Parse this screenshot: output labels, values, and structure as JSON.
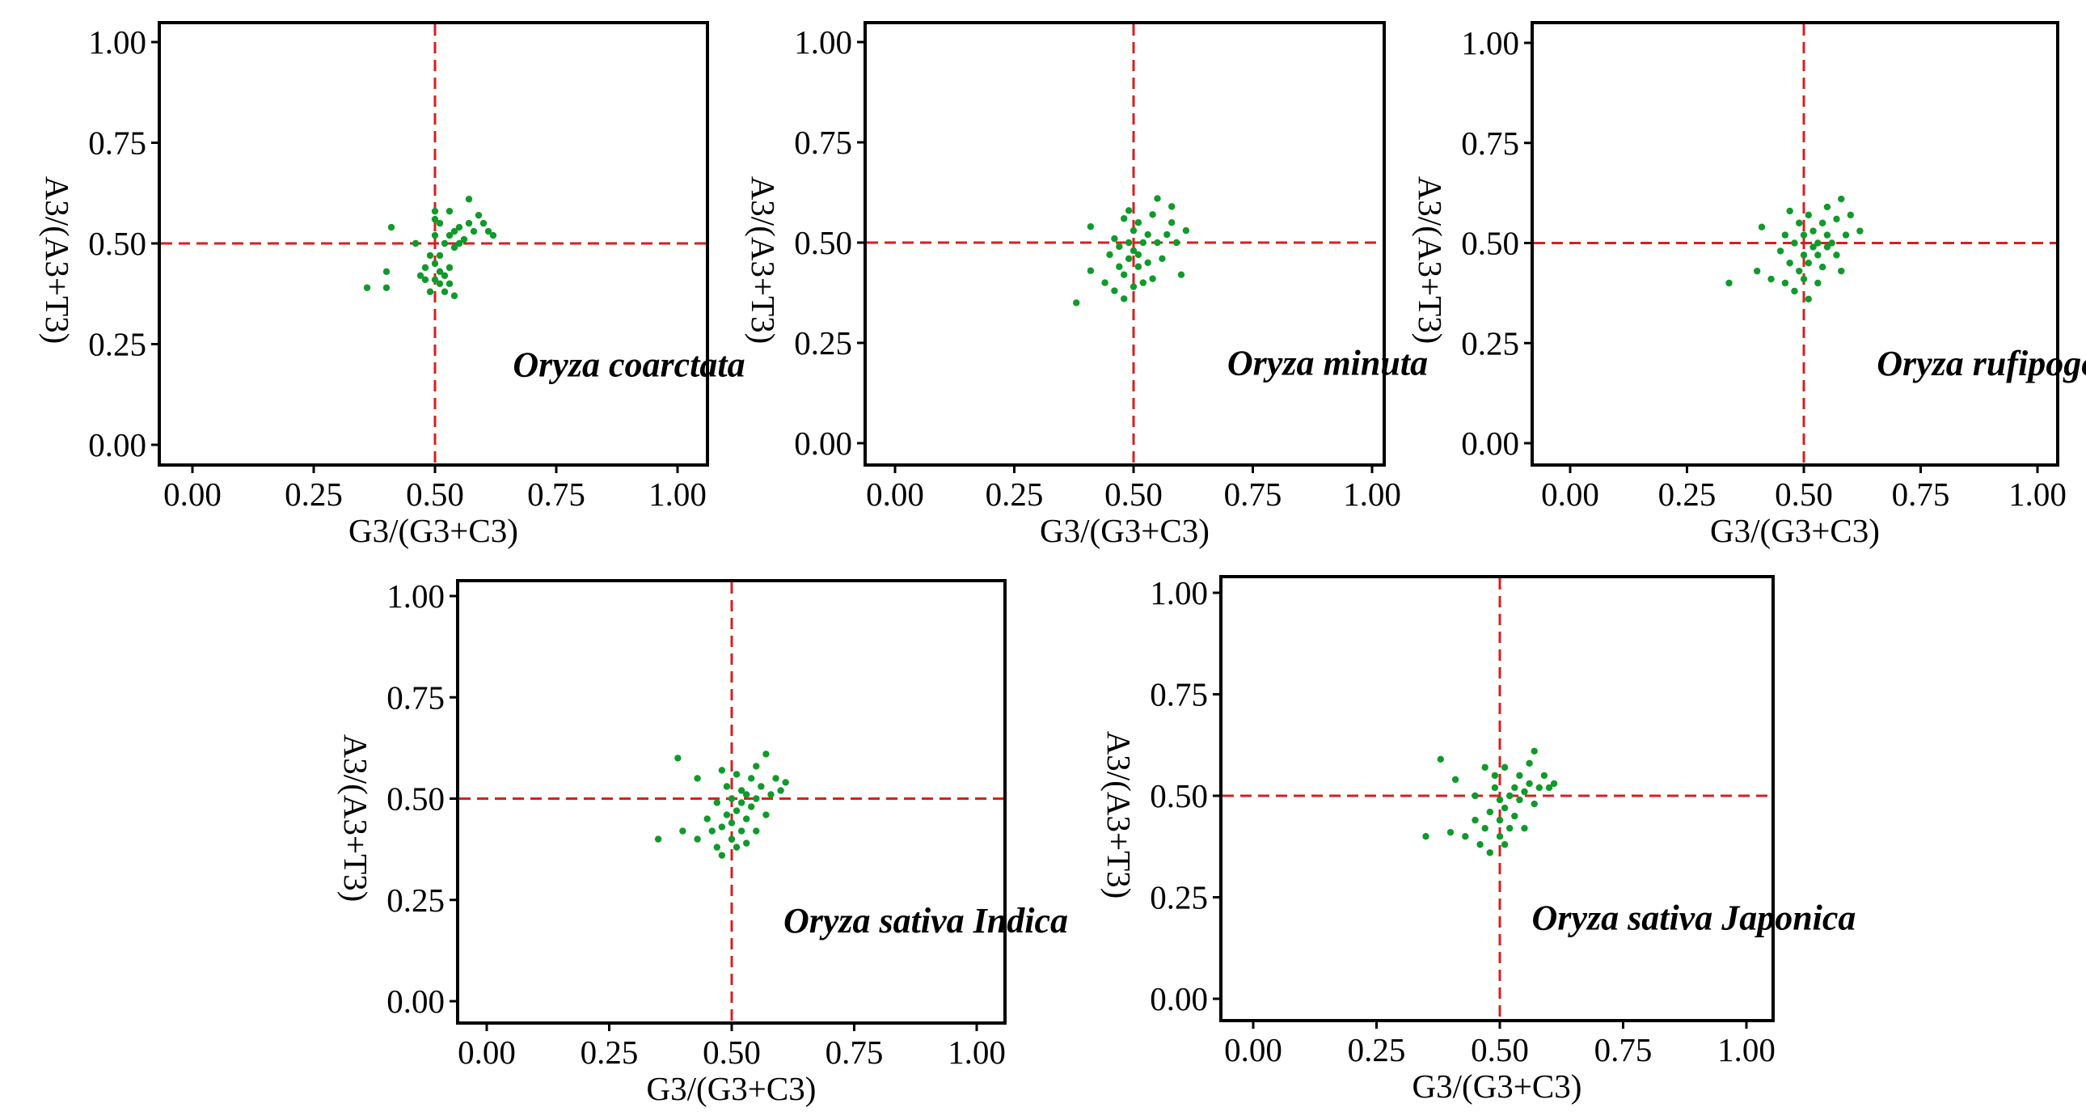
{
  "colors": {
    "points": "#0f9a2a",
    "ref_lines": "#d42020",
    "frame": "#000000",
    "text": "#000000"
  },
  "chart_data": [
    {
      "type": "scatter",
      "title": "Oryza coarctata",
      "xlabel": "G3/(G3+C3)",
      "ylabel": "A3/(A3+T3)",
      "xlim": [
        0,
        1
      ],
      "ylim": [
        0,
        1
      ],
      "xticks": [
        "0.00",
        "0.25",
        "0.50",
        "0.75",
        "1.00"
      ],
      "yticks": [
        "0.00",
        "0.25",
        "0.50",
        "0.75",
        "1.00"
      ],
      "ref_x": 0.5,
      "ref_y": 0.5,
      "points": [
        [
          0.36,
          0.39
        ],
        [
          0.4,
          0.39
        ],
        [
          0.4,
          0.43
        ],
        [
          0.41,
          0.54
        ],
        [
          0.46,
          0.5
        ],
        [
          0.47,
          0.42
        ],
        [
          0.48,
          0.41
        ],
        [
          0.48,
          0.44
        ],
        [
          0.49,
          0.38
        ],
        [
          0.49,
          0.47
        ],
        [
          0.5,
          0.41
        ],
        [
          0.5,
          0.45
        ],
        [
          0.5,
          0.52
        ],
        [
          0.5,
          0.56
        ],
        [
          0.5,
          0.58
        ],
        [
          0.51,
          0.4
        ],
        [
          0.51,
          0.43
        ],
        [
          0.51,
          0.47
        ],
        [
          0.51,
          0.55
        ],
        [
          0.52,
          0.38
        ],
        [
          0.52,
          0.42
        ],
        [
          0.52,
          0.5
        ],
        [
          0.53,
          0.4
        ],
        [
          0.53,
          0.44
        ],
        [
          0.53,
          0.52
        ],
        [
          0.53,
          0.58
        ],
        [
          0.54,
          0.37
        ],
        [
          0.54,
          0.49
        ],
        [
          0.54,
          0.53
        ],
        [
          0.55,
          0.5
        ],
        [
          0.55,
          0.54
        ],
        [
          0.56,
          0.51
        ],
        [
          0.57,
          0.55
        ],
        [
          0.57,
          0.61
        ],
        [
          0.58,
          0.53
        ],
        [
          0.59,
          0.57
        ],
        [
          0.6,
          0.55
        ],
        [
          0.61,
          0.53
        ],
        [
          0.62,
          0.52
        ]
      ]
    },
    {
      "type": "scatter",
      "title": "Oryza minuta",
      "xlabel": "G3/(G3+C3)",
      "ylabel": "A3/(A3+T3)",
      "xlim": [
        0,
        1
      ],
      "ylim": [
        0,
        1
      ],
      "xticks": [
        "0.00",
        "0.25",
        "0.50",
        "0.75",
        "1.00"
      ],
      "yticks": [
        "0.00",
        "0.25",
        "0.50",
        "0.75",
        "1.00"
      ],
      "ref_x": 0.5,
      "ref_y": 0.5,
      "points": [
        [
          0.38,
          0.35
        ],
        [
          0.41,
          0.43
        ],
        [
          0.41,
          0.54
        ],
        [
          0.44,
          0.4
        ],
        [
          0.45,
          0.47
        ],
        [
          0.46,
          0.38
        ],
        [
          0.46,
          0.51
        ],
        [
          0.47,
          0.44
        ],
        [
          0.47,
          0.49
        ],
        [
          0.48,
          0.36
        ],
        [
          0.48,
          0.42
        ],
        [
          0.48,
          0.56
        ],
        [
          0.49,
          0.46
        ],
        [
          0.49,
          0.5
        ],
        [
          0.49,
          0.58
        ],
        [
          0.5,
          0.39
        ],
        [
          0.5,
          0.48
        ],
        [
          0.5,
          0.53
        ],
        [
          0.51,
          0.44
        ],
        [
          0.51,
          0.47
        ],
        [
          0.51,
          0.55
        ],
        [
          0.52,
          0.4
        ],
        [
          0.52,
          0.5
        ],
        [
          0.53,
          0.45
        ],
        [
          0.53,
          0.52
        ],
        [
          0.54,
          0.41
        ],
        [
          0.54,
          0.57
        ],
        [
          0.55,
          0.5
        ],
        [
          0.55,
          0.61
        ],
        [
          0.56,
          0.46
        ],
        [
          0.57,
          0.52
        ],
        [
          0.58,
          0.55
        ],
        [
          0.58,
          0.59
        ],
        [
          0.59,
          0.5
        ],
        [
          0.6,
          0.42
        ],
        [
          0.61,
          0.53
        ]
      ]
    },
    {
      "type": "scatter",
      "title": "Oryza rufipogon",
      "xlabel": "G3/(G3+C3)",
      "ylabel": "A3/(A3+T3)",
      "xlim": [
        0,
        1
      ],
      "ylim": [
        0,
        1
      ],
      "xticks": [
        "0.00",
        "0.25",
        "0.50",
        "0.75",
        "1.00"
      ],
      "yticks": [
        "0.00",
        "0.25",
        "0.50",
        "0.75",
        "1.00"
      ],
      "ref_x": 0.5,
      "ref_y": 0.5,
      "points": [
        [
          0.34,
          0.4
        ],
        [
          0.4,
          0.43
        ],
        [
          0.41,
          0.54
        ],
        [
          0.43,
          0.41
        ],
        [
          0.45,
          0.48
        ],
        [
          0.46,
          0.4
        ],
        [
          0.46,
          0.52
        ],
        [
          0.47,
          0.45
        ],
        [
          0.47,
          0.58
        ],
        [
          0.48,
          0.38
        ],
        [
          0.48,
          0.5
        ],
        [
          0.49,
          0.43
        ],
        [
          0.49,
          0.55
        ],
        [
          0.5,
          0.41
        ],
        [
          0.5,
          0.47
        ],
        [
          0.5,
          0.52
        ],
        [
          0.51,
          0.36
        ],
        [
          0.51,
          0.45
        ],
        [
          0.51,
          0.57
        ],
        [
          0.52,
          0.49
        ],
        [
          0.52,
          0.53
        ],
        [
          0.53,
          0.4
        ],
        [
          0.53,
          0.47
        ],
        [
          0.53,
          0.5
        ],
        [
          0.54,
          0.44
        ],
        [
          0.54,
          0.55
        ],
        [
          0.55,
          0.49
        ],
        [
          0.55,
          0.52
        ],
        [
          0.55,
          0.59
        ],
        [
          0.56,
          0.5
        ],
        [
          0.57,
          0.47
        ],
        [
          0.57,
          0.56
        ],
        [
          0.58,
          0.61
        ],
        [
          0.58,
          0.43
        ],
        [
          0.59,
          0.52
        ],
        [
          0.6,
          0.57
        ],
        [
          0.62,
          0.53
        ]
      ]
    },
    {
      "type": "scatter",
      "title": "Oryza sativa Indica",
      "xlabel": "G3/(G3+C3)",
      "ylabel": "A3/(A3+T3)",
      "xlim": [
        0,
        1
      ],
      "ylim": [
        0,
        1
      ],
      "xticks": [
        "0.00",
        "0.25",
        "0.50",
        "0.75",
        "1.00"
      ],
      "yticks": [
        "0.00",
        "0.25",
        "0.50",
        "0.75",
        "1.00"
      ],
      "ref_x": 0.5,
      "ref_y": 0.5,
      "points": [
        [
          0.35,
          0.4
        ],
        [
          0.39,
          0.6
        ],
        [
          0.4,
          0.42
        ],
        [
          0.43,
          0.4
        ],
        [
          0.43,
          0.55
        ],
        [
          0.45,
          0.45
        ],
        [
          0.46,
          0.42
        ],
        [
          0.47,
          0.38
        ],
        [
          0.47,
          0.49
        ],
        [
          0.48,
          0.36
        ],
        [
          0.48,
          0.43
        ],
        [
          0.48,
          0.57
        ],
        [
          0.49,
          0.46
        ],
        [
          0.49,
          0.53
        ],
        [
          0.5,
          0.4
        ],
        [
          0.5,
          0.44
        ],
        [
          0.5,
          0.5
        ],
        [
          0.51,
          0.38
        ],
        [
          0.51,
          0.47
        ],
        [
          0.51,
          0.56
        ],
        [
          0.52,
          0.42
        ],
        [
          0.52,
          0.49
        ],
        [
          0.52,
          0.52
        ],
        [
          0.53,
          0.39
        ],
        [
          0.53,
          0.45
        ],
        [
          0.53,
          0.51
        ],
        [
          0.54,
          0.48
        ],
        [
          0.54,
          0.55
        ],
        [
          0.55,
          0.42
        ],
        [
          0.55,
          0.5
        ],
        [
          0.55,
          0.58
        ],
        [
          0.56,
          0.53
        ],
        [
          0.57,
          0.46
        ],
        [
          0.57,
          0.61
        ],
        [
          0.58,
          0.51
        ],
        [
          0.59,
          0.55
        ],
        [
          0.6,
          0.52
        ],
        [
          0.61,
          0.54
        ]
      ]
    },
    {
      "type": "scatter",
      "title": "Oryza sativa Japonica",
      "xlabel": "G3/(G3+C3)",
      "ylabel": "A3/(A3+T3)",
      "xlim": [
        0,
        1
      ],
      "ylim": [
        0,
        1
      ],
      "xticks": [
        "0.00",
        "0.25",
        "0.50",
        "0.75",
        "1.00"
      ],
      "yticks": [
        "0.00",
        "0.25",
        "0.50",
        "0.75",
        "1.00"
      ],
      "ref_x": 0.5,
      "ref_y": 0.5,
      "points": [
        [
          0.35,
          0.4
        ],
        [
          0.38,
          0.59
        ],
        [
          0.4,
          0.41
        ],
        [
          0.41,
          0.54
        ],
        [
          0.43,
          0.4
        ],
        [
          0.45,
          0.44
        ],
        [
          0.45,
          0.5
        ],
        [
          0.46,
          0.38
        ],
        [
          0.47,
          0.42
        ],
        [
          0.47,
          0.57
        ],
        [
          0.48,
          0.36
        ],
        [
          0.48,
          0.46
        ],
        [
          0.49,
          0.52
        ],
        [
          0.49,
          0.55
        ],
        [
          0.5,
          0.4
        ],
        [
          0.5,
          0.44
        ],
        [
          0.5,
          0.49
        ],
        [
          0.51,
          0.38
        ],
        [
          0.51,
          0.47
        ],
        [
          0.51,
          0.57
        ],
        [
          0.52,
          0.42
        ],
        [
          0.52,
          0.5
        ],
        [
          0.53,
          0.45
        ],
        [
          0.53,
          0.52
        ],
        [
          0.54,
          0.49
        ],
        [
          0.54,
          0.55
        ],
        [
          0.55,
          0.42
        ],
        [
          0.55,
          0.51
        ],
        [
          0.56,
          0.58
        ],
        [
          0.56,
          0.53
        ],
        [
          0.57,
          0.48
        ],
        [
          0.57,
          0.61
        ],
        [
          0.58,
          0.52
        ],
        [
          0.59,
          0.55
        ],
        [
          0.6,
          0.52
        ],
        [
          0.61,
          0.53
        ]
      ]
    }
  ]
}
